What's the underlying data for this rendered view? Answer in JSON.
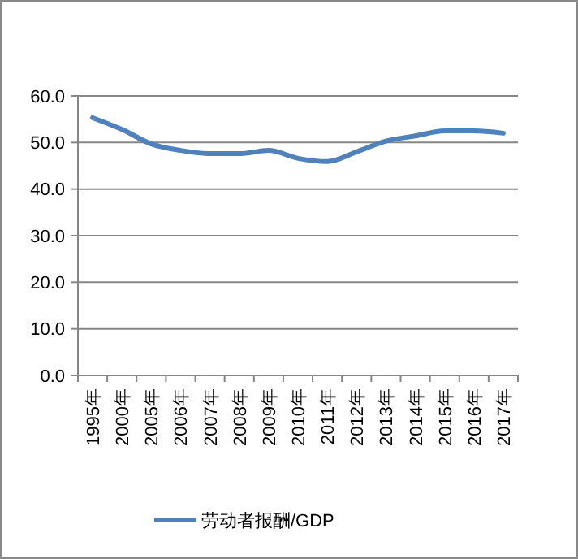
{
  "chart_data": {
    "type": "line",
    "categories": [
      "1995年",
      "2000年",
      "2005年",
      "2006年",
      "2007年",
      "2008年",
      "2009年",
      "2010年",
      "2011年",
      "2012年",
      "2013年",
      "2014年",
      "2015年",
      "2016年",
      "2017年"
    ],
    "series": [
      {
        "name": "劳动者报酬/GDP",
        "color": "#4f81bd",
        "values": [
          55.3,
          52.8,
          49.7,
          48.3,
          47.6,
          47.6,
          48.3,
          46.6,
          45.9,
          48.0,
          50.3,
          51.4,
          52.5,
          52.5,
          52.0
        ]
      }
    ],
    "ylim": [
      0,
      60
    ],
    "yticks": [
      {
        "value": 0,
        "label": "0.0"
      },
      {
        "value": 10,
        "label": "10.0"
      },
      {
        "value": 20,
        "label": "20.0"
      },
      {
        "value": 30,
        "label": "30.0"
      },
      {
        "value": 40,
        "label": "40.0"
      },
      {
        "value": 50,
        "label": "50.0"
      },
      {
        "value": 60,
        "label": "60.0"
      }
    ],
    "grid": "y",
    "legend": "bottom",
    "marker": "none",
    "line_style": "solid"
  }
}
